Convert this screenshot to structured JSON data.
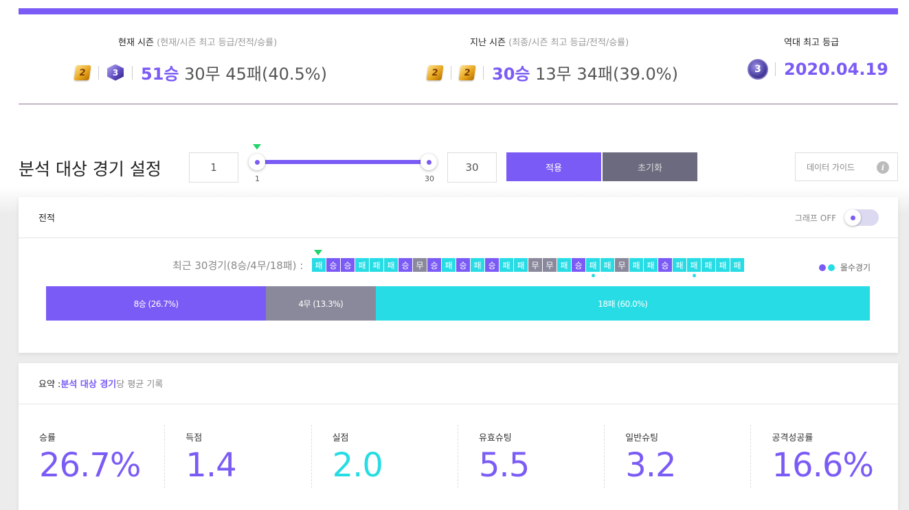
{
  "seasons": {
    "current": {
      "title": "현재 시즌",
      "subtitle": "(현재/시즌 최고 등급/전적/승률)",
      "badge1": "2",
      "badge2": "3",
      "wins": "51승",
      "rest": " 30무 45패(40.5%)"
    },
    "previous": {
      "title": "지난 시즌",
      "subtitle": "(최종/시즌 최고 등급/전적/승률)",
      "badge1": "2",
      "badge2": "2",
      "wins": "30승",
      "rest": " 13무 34패(39.0%)"
    },
    "best": {
      "title": "역대 최고 등급",
      "badge": "3",
      "date": "2020.04.19"
    }
  },
  "analysis": {
    "title": "분석 대상 경기 설정",
    "start_value": "1",
    "end_value": "30",
    "tick_start": "1",
    "tick_end": "30",
    "range_start": 1,
    "range_end": 30,
    "apply_label": "적용",
    "reset_label": "초기화",
    "guide_label": "데이터 가이드",
    "info_glyph": "i"
  },
  "record": {
    "title": "전적",
    "graph_toggle_label": "그래프 OFF",
    "graph_on": false,
    "recent_label": "최근 30경기(8승/4무/18패) :",
    "results": [
      "패",
      "승",
      "승",
      "패",
      "패",
      "패",
      "승",
      "무",
      "승",
      "패",
      "승",
      "패",
      "승",
      "패",
      "패",
      "무",
      "무",
      "패",
      "승",
      "패",
      "패",
      "무",
      "패",
      "패",
      "승",
      "패",
      "패",
      "패",
      "패",
      "패"
    ],
    "multi_goal_indices": [
      19,
      26
    ],
    "legend_label": "몰수경기",
    "colors": {
      "win": "#7b5bf5",
      "draw": "#8a899c",
      "loss": "#27dce4"
    },
    "bar": [
      {
        "label": "8승 (26.7%)",
        "share": 26.7,
        "type": "win"
      },
      {
        "label": "4무 (13.3%)",
        "share": 13.3,
        "type": "draw"
      },
      {
        "label": "18패 (60.0%)",
        "share": 60.0,
        "type": "loss"
      }
    ]
  },
  "summary": {
    "prefix": "요약 : ",
    "accent": "분석 대상 경기",
    "suffix": "당 평균 기록",
    "stats": [
      {
        "label": "승률",
        "value": "26.7%",
        "color": "purple"
      },
      {
        "label": "득점",
        "value": "1.4",
        "color": "purple"
      },
      {
        "label": "실점",
        "value": "2.0",
        "color": "cyan"
      },
      {
        "label": "유효슈팅",
        "value": "5.5",
        "color": "purple"
      },
      {
        "label": "일반슈팅",
        "value": "3.2",
        "color": "purple"
      },
      {
        "label": "공격성공률",
        "value": "16.6%",
        "color": "purple"
      }
    ]
  }
}
